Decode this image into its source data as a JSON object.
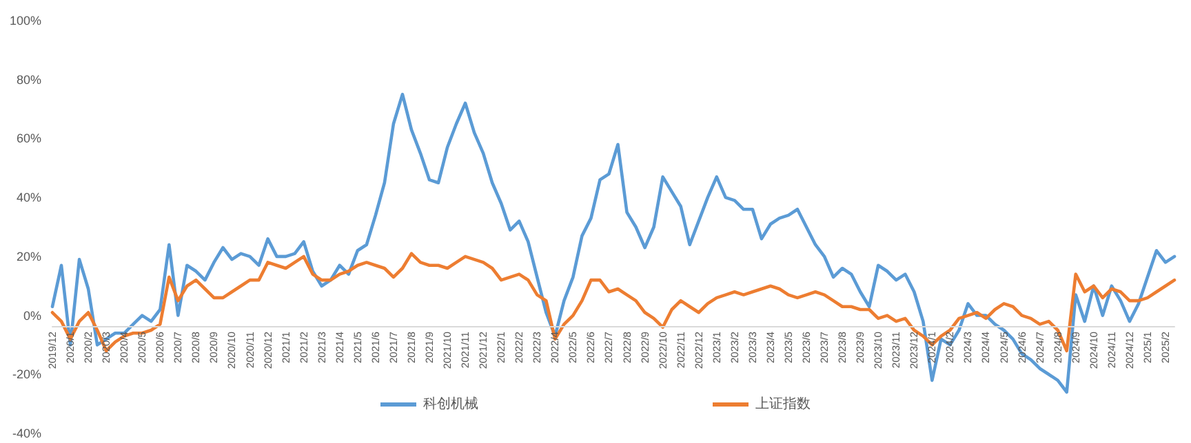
{
  "chart_data": {
    "type": "line",
    "categories": [
      "2019/12",
      null,
      "2020/1",
      null,
      "2020/2",
      null,
      "2020/3",
      null,
      "2020/4",
      null,
      "2020/5",
      null,
      "2020/6",
      null,
      "2020/7",
      null,
      "2020/8",
      null,
      "2020/9",
      null,
      "2020/10",
      null,
      "2020/11",
      null,
      "2020/12",
      null,
      "2021/1",
      null,
      "2021/2",
      null,
      "2021/3",
      null,
      "2021/4",
      null,
      "2021/5",
      null,
      "2021/6",
      null,
      "2021/7",
      null,
      "2021/8",
      null,
      "2021/9",
      null,
      "2021/10",
      null,
      "2021/11",
      null,
      "2021/12",
      null,
      "2022/1",
      null,
      "2022/2",
      null,
      "2022/3",
      null,
      "2022/4",
      null,
      "2022/5",
      null,
      "2022/6",
      null,
      "2022/7",
      null,
      "2022/8",
      null,
      "2022/9",
      null,
      "2022/10",
      null,
      "2022/11",
      null,
      "2022/12",
      null,
      "2023/1",
      null,
      "2023/2",
      null,
      "2023/3",
      null,
      "2023/4",
      null,
      "2023/5",
      null,
      "2023/6",
      null,
      "2023/7",
      null,
      "2023/8",
      null,
      "2023/9",
      null,
      "2023/10",
      null,
      "2023/11",
      null,
      "2023/12",
      null,
      "2024/1",
      null,
      "2024/2",
      null,
      "2024/3",
      null,
      "2024/4",
      null,
      "2024/5",
      null,
      "2024/6",
      null,
      "2024/7",
      null,
      "2024/8",
      null,
      "2024/9",
      null,
      "2024/10",
      null,
      "2024/11",
      null,
      "2024/12",
      null,
      "2025/1",
      null,
      "2025/2",
      null
    ],
    "series": [
      {
        "name": "科创机械",
        "color": "#5b9bd5",
        "values": [
          3,
          17,
          -10,
          19,
          9,
          -10,
          -8,
          -6,
          -6,
          -3,
          0,
          -2,
          2,
          24,
          0,
          17,
          15,
          12,
          18,
          23,
          19,
          21,
          20,
          17,
          26,
          20,
          20,
          21,
          25,
          15,
          10,
          12,
          17,
          14,
          22,
          24,
          34,
          45,
          65,
          75,
          63,
          55,
          46,
          45,
          57,
          65,
          72,
          62,
          55,
          45,
          38,
          29,
          32,
          25,
          13,
          1,
          -7,
          5,
          13,
          27,
          33,
          46,
          48,
          58,
          35,
          30,
          23,
          30,
          47,
          42,
          37,
          24,
          32,
          40,
          47,
          40,
          39,
          36,
          36,
          26,
          31,
          33,
          34,
          36,
          30,
          24,
          20,
          13,
          16,
          14,
          8,
          3,
          17,
          15,
          12,
          14,
          8,
          -2,
          -22,
          -8,
          -10,
          -5,
          4,
          0,
          0,
          -3,
          -5,
          -8,
          -13,
          -15,
          -18,
          -20,
          -22,
          -26,
          7,
          -2,
          10,
          0,
          10,
          5,
          -2,
          4,
          13,
          22,
          18,
          20
        ]
      },
      {
        "name": "上证指数",
        "color": "#ed7d31",
        "values": [
          1,
          -2,
          -8,
          -2,
          1,
          -5,
          -12,
          -9,
          -7,
          -6,
          -6,
          -5,
          -3,
          13,
          5,
          10,
          12,
          9,
          6,
          6,
          8,
          10,
          12,
          12,
          18,
          17,
          16,
          18,
          20,
          14,
          12,
          12,
          14,
          15,
          17,
          18,
          17,
          16,
          13,
          16,
          21,
          18,
          17,
          17,
          16,
          18,
          20,
          19,
          18,
          16,
          12,
          13,
          14,
          12,
          7,
          5,
          -8,
          -3,
          0,
          5,
          12,
          12,
          8,
          9,
          7,
          5,
          1,
          -1,
          -4,
          2,
          5,
          3,
          1,
          4,
          6,
          7,
          8,
          7,
          8,
          9,
          10,
          9,
          7,
          6,
          7,
          8,
          7,
          5,
          3,
          3,
          2,
          2,
          -1,
          0,
          -2,
          -1,
          -5,
          -7,
          -10,
          -7,
          -5,
          -1,
          0,
          1,
          -1,
          2,
          4,
          3,
          0,
          -1,
          -3,
          -2,
          -5,
          -12,
          14,
          8,
          10,
          6,
          9,
          8,
          5,
          5,
          6,
          8,
          10,
          12
        ]
      }
    ],
    "ylim": [
      -40,
      100
    ],
    "yticks": [
      {
        "value": -40,
        "label": "-40%"
      },
      {
        "value": -20,
        "label": "-20%"
      },
      {
        "value": 0,
        "label": "0%"
      },
      {
        "value": 20,
        "label": "20%"
      },
      {
        "value": 40,
        "label": "40%"
      },
      {
        "value": 60,
        "label": "60%"
      },
      {
        "value": 80,
        "label": "80%"
      },
      {
        "value": 100,
        "label": "100%"
      }
    ],
    "legend": "bottom",
    "grid": false,
    "marker": "none",
    "line_style": "solid"
  }
}
